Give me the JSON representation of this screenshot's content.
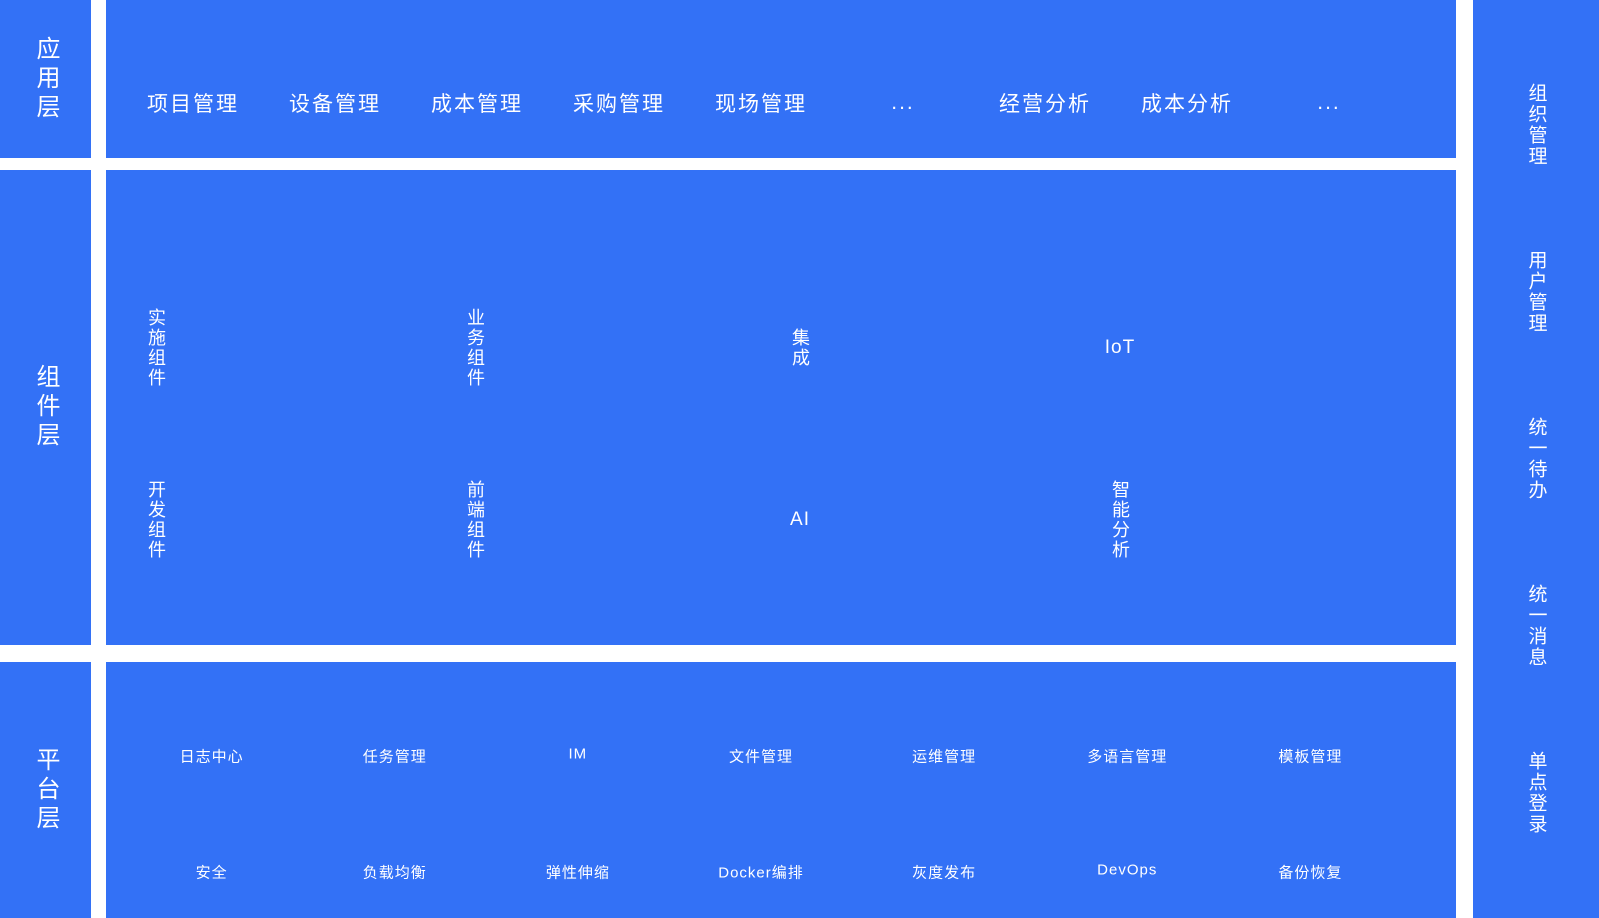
{
  "theme": {
    "accent_blue": "#3371f6",
    "text_color": "#ffffff",
    "background": "#ffffff"
  },
  "layers": {
    "application": {
      "label": "应用层",
      "items": [
        "项目管理",
        "设备管理",
        "成本管理",
        "采购管理",
        "现场管理",
        "...",
        "经营分析",
        "成本分析",
        "..."
      ]
    },
    "component": {
      "label": "组件层",
      "rows": [
        [
          "实施组件",
          "业务组件",
          "集成",
          "IoT"
        ],
        [
          "开发组件",
          "前端组件",
          "AI",
          "智能分析"
        ]
      ]
    },
    "platform": {
      "label": "平台层",
      "rows": [
        [
          "日志中心",
          "任务管理",
          "IM",
          "文件管理",
          "运维管理",
          "多语言管理",
          "模板管理"
        ],
        [
          "安全",
          "负载均衡",
          "弹性伸缩",
          "Docker编排",
          "灰度发布",
          "DevOps",
          "备份恢复"
        ]
      ]
    }
  },
  "sidebar": {
    "items": [
      "组织管理",
      "用户管理",
      "统一待办",
      "统一消息",
      "单点登录"
    ]
  }
}
